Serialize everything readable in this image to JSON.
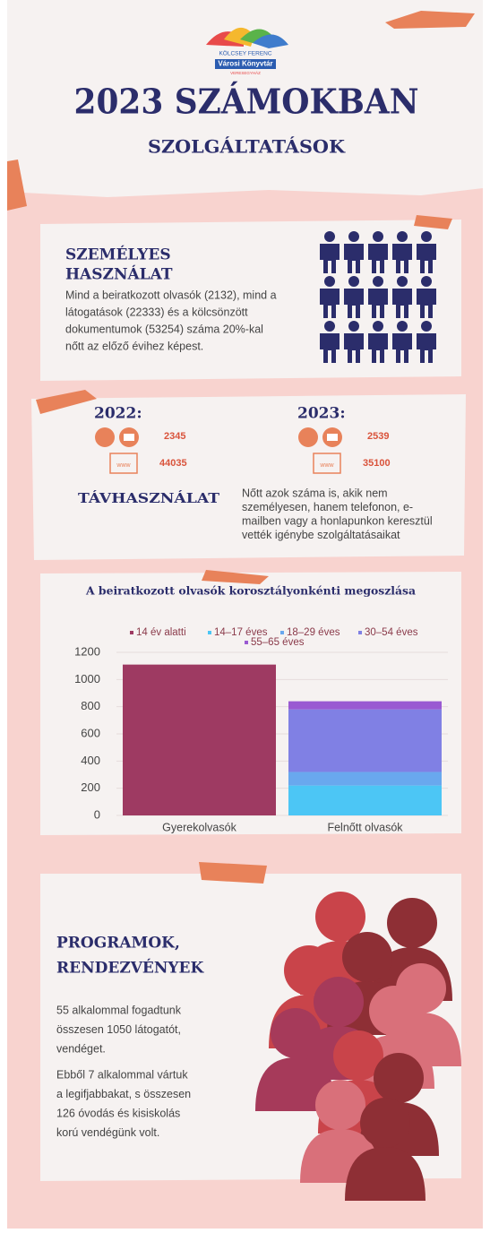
{
  "header": {
    "logo": [
      "KÖLCSEY FERENC",
      "Városi Könyvtár",
      "VERESEGYHÁZ"
    ],
    "title": "2023 SZÁMOKBAN",
    "subtitle": "SZOLGÁLTATÁSOK"
  },
  "personal": {
    "title": [
      "SZEMÉLYES",
      "HASZNÁLAT"
    ],
    "text": [
      "Mind a beiratkozott olvasók (2132), mind a",
      "látogatások (22333) és a kölcsönzött",
      "dokumentumok (53254) száma 20%-kal",
      "nőtt az előző évihez képest."
    ]
  },
  "remote": {
    "years": [
      {
        "label": "2022:",
        "phone_email": 2345,
        "web": 44035
      },
      {
        "label": "2023:",
        "phone_email": 2539,
        "web": 35100
      }
    ],
    "title": "TÁVHASZNÁLAT",
    "text": [
      "Nőtt azok száma is, akik nem",
      "személyesen, hanem telefonon, e-",
      "mailben vagy a honlapunkon keresztül",
      "vették igénybe szolgáltatásaikat"
    ]
  },
  "chart_data": {
    "type": "stacked_bar",
    "title": "A beiratkozott olvasók korosztályonkénti megoszlása",
    "categories": [
      "Gyerekolvasók",
      "Felnőtt olvasók"
    ],
    "series": [
      {
        "name": "14 év alatti",
        "color": "#9e3a62",
        "values": [
          1110,
          0
        ]
      },
      {
        "name": "14–17 éves",
        "color": "#4cc6f5",
        "values": [
          0,
          220
        ]
      },
      {
        "name": "18–29 éves",
        "color": "#69a8ee",
        "values": [
          0,
          100
        ]
      },
      {
        "name": "30–54 éves",
        "color": "#8080e4",
        "values": [
          0,
          460
        ]
      },
      {
        "name": "55–65 éves",
        "color": "#9a5ad2",
        "values": [
          0,
          60
        ]
      }
    ],
    "ylim": [
      0,
      1200
    ],
    "yticks": [
      0,
      200,
      400,
      600,
      800,
      1000,
      1200
    ],
    "grid": true
  },
  "programs": {
    "title": [
      "PROGRAMOK,",
      "RENDEZVÉNYEK"
    ],
    "paragraphs": [
      [
        "55 alkalommal fogadtunk",
        "összesen 1050 látogatót,",
        "vendéget."
      ],
      [
        "Ebből 7 alkalommal vártuk",
        "a legifjabbakat, s összesen",
        "126 óvodás és kisiskolás",
        "korú vendégünk volt."
      ]
    ]
  }
}
